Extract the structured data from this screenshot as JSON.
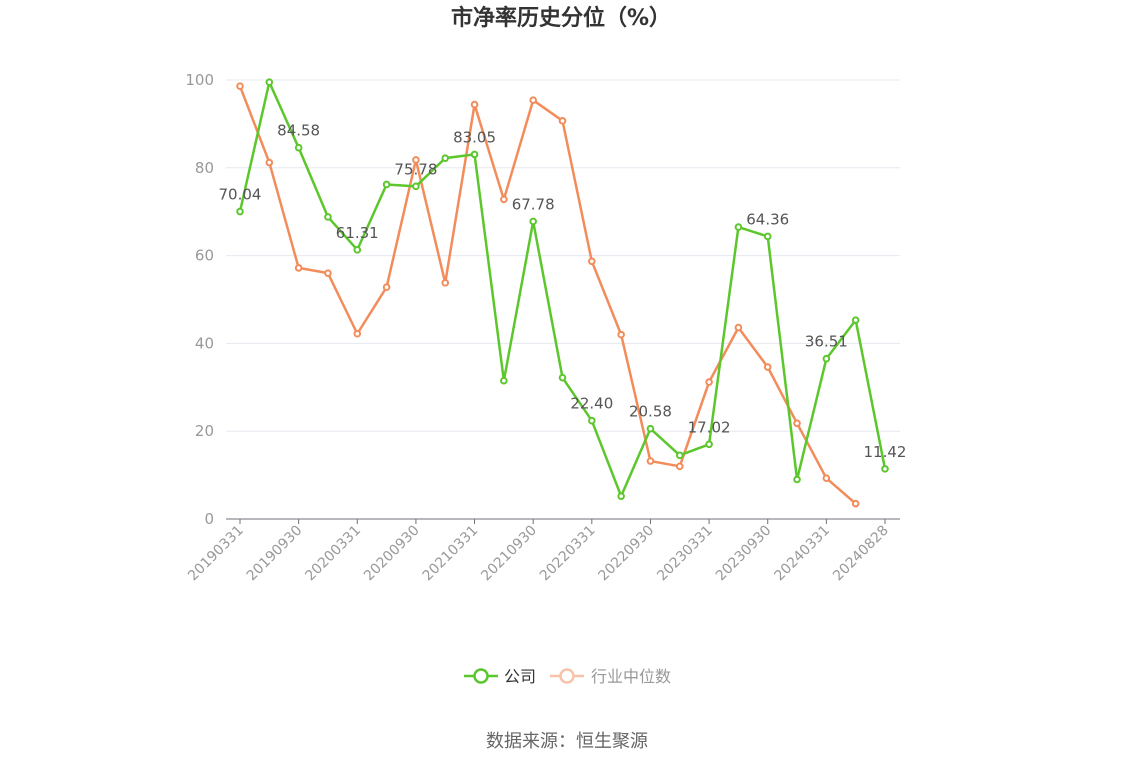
{
  "chart_data": {
    "type": "line",
    "title": "市净率历史分位（%）",
    "source": "数据来源：恒生聚源",
    "ylim": [
      0,
      100
    ],
    "yticks": [
      0,
      20,
      40,
      60,
      80,
      100
    ],
    "grid": true,
    "legend_position": "bottom-center",
    "x": [
      "20190331",
      "20190630",
      "20190930",
      "20191231",
      "20200331",
      "20200630",
      "20200930",
      "20201231",
      "20210331",
      "20210630",
      "20210930",
      "20211231",
      "20220331",
      "20220630",
      "20220930",
      "20221231",
      "20230331",
      "20230630",
      "20230930",
      "20231231",
      "20240331",
      "20240630",
      "20240828"
    ],
    "x_tick_labels": [
      "20190331",
      "20190930",
      "20200331",
      "20200930",
      "20210331",
      "20210930",
      "20220331",
      "20220930",
      "20230331",
      "20230930",
      "20240331",
      "20240828"
    ],
    "series": [
      {
        "name": "公司",
        "color": "#5cc72c",
        "values": [
          70.04,
          99.5,
          84.58,
          68.8,
          61.31,
          76.2,
          75.78,
          82.2,
          83.05,
          31.5,
          67.78,
          32.2,
          22.4,
          5.2,
          20.58,
          14.5,
          17.02,
          66.5,
          64.36,
          9.0,
          36.51,
          45.3,
          11.42
        ],
        "labels": {
          "0": "70.04",
          "2": "84.58",
          "4": "61.31",
          "6": "75.78",
          "8": "83.05",
          "10": "67.78",
          "12": "22.40",
          "14": "20.58",
          "16": "17.02",
          "18": "64.36",
          "20": "36.51",
          "22": "11.42"
        }
      },
      {
        "name": "行业中位数",
        "color": "#f28c5a",
        "values": [
          98.6,
          81.2,
          57.2,
          56.0,
          42.2,
          52.8,
          81.8,
          53.8,
          94.4,
          72.8,
          95.4,
          90.7,
          58.7,
          42.0,
          13.2,
          12.0,
          31.2,
          43.6,
          34.6,
          21.8,
          9.3,
          3.5,
          null
        ]
      }
    ]
  }
}
